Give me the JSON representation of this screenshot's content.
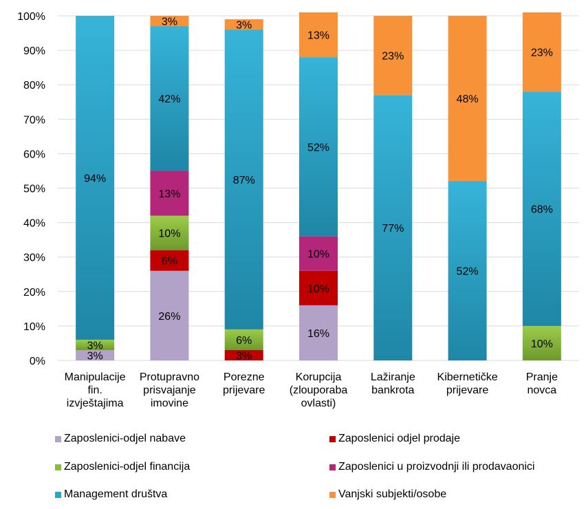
{
  "chart_data": {
    "type": "bar",
    "stacked": true,
    "orientation": "vertical",
    "categories": [
      [
        "Manipulacije",
        "fin.",
        "izvještajima"
      ],
      [
        "Protupravno",
        "prisvajanje",
        "imovine"
      ],
      [
        "Porezne",
        "prijevare"
      ],
      [
        "Korupcija",
        "(zlouporaba",
        "ovlasti)"
      ],
      [
        "Lažiranje",
        "bankrota"
      ],
      [
        "Kibernetičke",
        "prijevare"
      ],
      [
        "Pranje",
        "novca"
      ]
    ],
    "yticks": [
      "0%",
      "10%",
      "20%",
      "30%",
      "40%",
      "50%",
      "60%",
      "70%",
      "80%",
      "90%",
      "100%"
    ],
    "ylim": [
      0,
      100
    ],
    "grid": true,
    "legend_position": "bottom",
    "series": [
      {
        "name": "Zaposlenici-odjel nabave",
        "color": "#b3a2c7",
        "values": [
          3,
          26,
          0,
          16,
          0,
          0,
          0
        ],
        "labels": [
          "3%",
          "26%",
          "",
          "16%",
          "",
          "",
          ""
        ]
      },
      {
        "name": "Zaposlenici odjel prodaje",
        "color": "#c00000",
        "values": [
          0,
          6,
          3,
          10,
          0,
          0,
          0
        ],
        "labels": [
          "",
          "6%",
          "3%",
          "10%",
          "",
          "",
          ""
        ]
      },
      {
        "name": "Zaposlenici-odjel financija",
        "color": "#8dbb3c",
        "values": [
          3,
          10,
          6,
          0,
          0,
          0,
          10
        ],
        "labels": [
          "3%",
          "10%",
          "6%",
          "",
          "",
          "",
          "10%"
        ]
      },
      {
        "name": "Zaposlenici u proizvodnji ili prodavaonici",
        "color": "#b3267a",
        "values": [
          0,
          13,
          0,
          10,
          0,
          0,
          0
        ],
        "labels": [
          "",
          "13%",
          "",
          "10%",
          "",
          "",
          ""
        ]
      },
      {
        "name": "Management društva",
        "color": "#2aa6c8",
        "values": [
          94,
          42,
          87,
          52,
          77,
          52,
          68
        ],
        "labels": [
          "94%",
          "42%",
          "87%",
          "52%",
          "77%",
          "52%",
          "68%"
        ]
      },
      {
        "name": "Vanjski subjekti/osobe",
        "color": "#f79239",
        "values": [
          0,
          3,
          3,
          13,
          23,
          48,
          23
        ],
        "labels": [
          "",
          "3%",
          "3%",
          "13%",
          "23%",
          "48%",
          "23%"
        ]
      }
    ]
  }
}
